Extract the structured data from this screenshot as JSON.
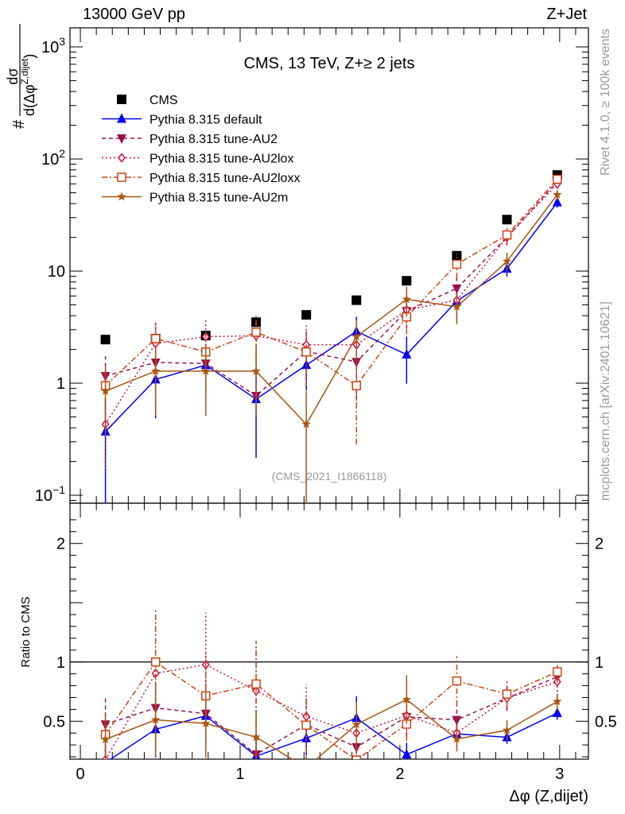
{
  "header": {
    "left": "13000 GeV pp",
    "right": "Z+Jet"
  },
  "side": {
    "rivet": "Rivet 4.1.0, ≥ 100k events",
    "mcplots": "mcplots.cern.ch [arXiv:2401.10621]"
  },
  "chart_data": [
    {
      "type": "line",
      "title": "CMS, 13 TeV, Z+≥ 2 jets",
      "annotation": "(CMS_2021_I1866118)",
      "ylabel": "dσ / d(Δφ^{Z,dijet})",
      "ylabel_parts": {
        "hash": "#",
        "num": "dσ",
        "den": "d(Δφ",
        "sup": "Z,dijet",
        "close": ")"
      },
      "yscale": "log",
      "ylim": [
        0.085,
        1480
      ],
      "yticks": [
        {
          "v": 1000,
          "base": "10",
          "exp": "3"
        },
        {
          "v": 100,
          "base": "10",
          "exp": "2"
        },
        {
          "v": 10,
          "base": "10",
          "exp": ""
        },
        {
          "v": 1,
          "base": "1",
          "exp": ""
        },
        {
          "v": 0.1,
          "base": "10",
          "exp": "−1"
        }
      ],
      "xlim": [
        -0.065,
        3.18
      ],
      "x": [
        0.157,
        0.471,
        0.785,
        1.1,
        1.414,
        1.728,
        2.042,
        2.356,
        2.67,
        2.985
      ],
      "legend_position": "top-left",
      "series": [
        {
          "name": "CMS",
          "color": "#000000",
          "marker": "square",
          "dash": "none",
          "values": [
            2.45,
            2.5,
            2.66,
            3.5,
            4.07,
            5.5,
            8.2,
            13.7,
            28.8,
            72
          ]
        },
        {
          "name": "Pythia 8.315 default",
          "color": "#0000ff",
          "marker": "triangle-up",
          "dash": "",
          "values": [
            0.37,
            1.08,
            1.45,
            0.72,
            1.45,
            2.9,
            1.8,
            5.4,
            10.5,
            41
          ],
          "err_rel": [
            1,
            0.55,
            0.45,
            0.7,
            0.4,
            0.35,
            0.45,
            0.15,
            0.15,
            0.1
          ]
        },
        {
          "name": "Pythia 8.315 tune-AU2",
          "color": "#99114d",
          "marker": "triangle-down",
          "dash": "5,4",
          "values": [
            1.16,
            1.53,
            1.5,
            0.77,
            1.92,
            1.55,
            4.4,
            7,
            20,
            63
          ],
          "err_rel": [
            0.5,
            0.5,
            0.5,
            0.7,
            0.5,
            0.6,
            0.3,
            0.25,
            0.15,
            0.1
          ]
        },
        {
          "name": "Pythia 8.315 tune-AU2lox",
          "color": "#cc1144",
          "marker": "diamond",
          "dash": "2,3",
          "values": [
            0.43,
            2.26,
            2.6,
            2.65,
            2.2,
            2.2,
            4.5,
            5.5,
            20,
            60
          ],
          "err_rel": [
            0.6,
            0.5,
            0.45,
            0.5,
            0.5,
            0.5,
            0.3,
            0.3,
            0.15,
            0.1
          ]
        },
        {
          "name": "Pythia 8.315 tune-AU2loxx",
          "color": "#cc4411",
          "marker": "square-open",
          "dash": "7,3,2,3",
          "values": [
            0.95,
            2.5,
            1.9,
            2.85,
            1.9,
            0.95,
            3.9,
            11.5,
            21,
            66
          ],
          "err_rel": [
            0.5,
            0.45,
            0.5,
            0.45,
            0.5,
            0.7,
            0.3,
            0.25,
            0.15,
            0.1
          ]
        },
        {
          "name": "Pythia 8.315 tune-AU2m",
          "color": "#aa5511",
          "marker": "star",
          "dash": "",
          "values": [
            0.85,
            1.28,
            1.28,
            1.28,
            0.43,
            2.6,
            5.6,
            4.8,
            12.2,
            48
          ],
          "err_rel": [
            0.6,
            0.6,
            0.6,
            0.6,
            1,
            0.4,
            0.3,
            0.3,
            0.2,
            0.1
          ]
        }
      ]
    },
    {
      "type": "line",
      "ylabel": "Ratio to CMS",
      "xlabel": "Δφ (Z,dijet)",
      "ylim": [
        0.18,
        2.34
      ],
      "yticks": [
        {
          "v": 2,
          "label": "2"
        },
        {
          "v": 1,
          "label": "1"
        },
        {
          "v": 0.5,
          "label": "0.5"
        }
      ],
      "xticks": [
        {
          "v": 0,
          "label": "0"
        },
        {
          "v": 1,
          "label": "1"
        },
        {
          "v": 2,
          "label": "2"
        },
        {
          "v": 3,
          "label": "3"
        }
      ],
      "reference": 1
    }
  ]
}
